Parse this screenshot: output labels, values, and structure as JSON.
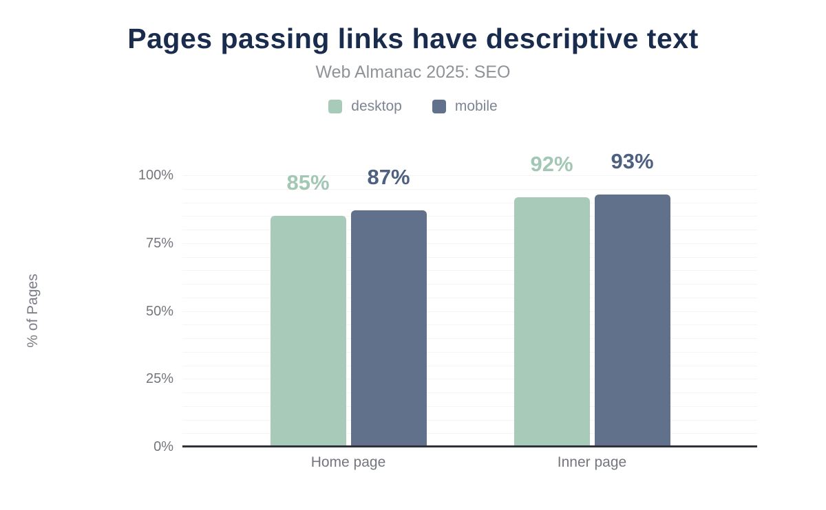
{
  "chart_data": {
    "type": "bar",
    "title": "Pages passing links have descriptive text",
    "subtitle": "Web Almanac 2025: SEO",
    "categories": [
      "Home page",
      "Inner page"
    ],
    "series": [
      {
        "name": "desktop",
        "color": "#a8cbb9",
        "label_color": "#a2c7b4",
        "values": [
          85,
          92
        ],
        "value_labels": [
          "85%",
          "92%"
        ]
      },
      {
        "name": "mobile",
        "color": "#61708b",
        "label_color": "#4e6080",
        "values": [
          87,
          93
        ],
        "value_labels": [
          "87%",
          "93%"
        ]
      }
    ],
    "xlabel": "",
    "ylabel": "% of Pages",
    "ylim": [
      0,
      100
    ],
    "yticks": [
      0,
      25,
      50,
      75,
      100
    ],
    "ytick_labels": [
      "0%",
      "25%",
      "50%",
      "75%",
      "100%"
    ],
    "grid": {
      "horizontal": true,
      "minor_step_percent": 5
    },
    "legend_position": "top"
  },
  "colors": {
    "title": "#1a2c4e",
    "subtitle": "#8f9297",
    "axis_text": "#73767d",
    "legend_text": "#7c8594",
    "gridline": "#f4f4f4",
    "axis_line": "#2e3339",
    "background": "#ffffff"
  }
}
